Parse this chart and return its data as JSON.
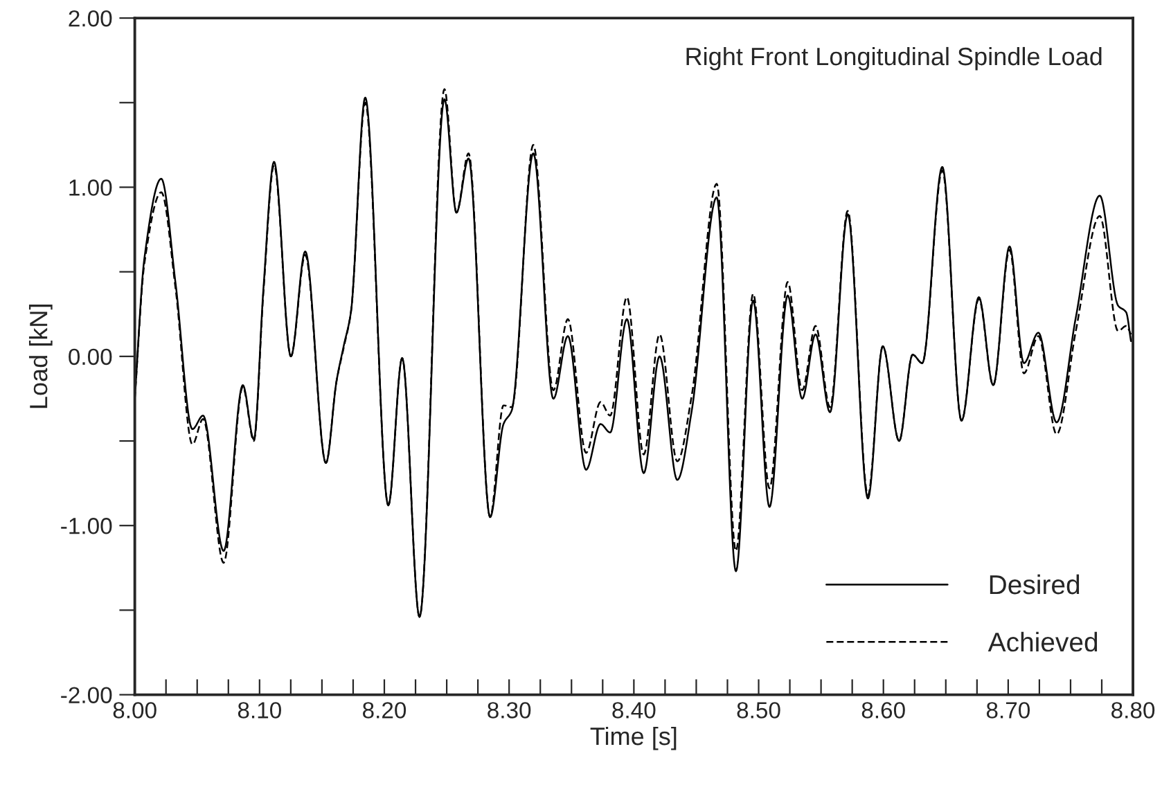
{
  "chart_data": {
    "type": "line",
    "xlabel": "Time [s]",
    "ylabel": "Load [kN]",
    "annotations": [
      "Right Front Longitudinal Spindle Load"
    ],
    "xlim": [
      8.0,
      8.8
    ],
    "ylim": [
      -2.0,
      2.0
    ],
    "xticks": [
      {
        "value": 8.0,
        "label": "8.00"
      },
      {
        "value": 8.025,
        "label": null
      },
      {
        "value": 8.05,
        "label": null
      },
      {
        "value": 8.075,
        "label": null
      },
      {
        "value": 8.1,
        "label": "8.10"
      },
      {
        "value": 8.125,
        "label": null
      },
      {
        "value": 8.15,
        "label": null
      },
      {
        "value": 8.175,
        "label": null
      },
      {
        "value": 8.2,
        "label": "8.20"
      },
      {
        "value": 8.225,
        "label": null
      },
      {
        "value": 8.25,
        "label": null
      },
      {
        "value": 8.275,
        "label": null
      },
      {
        "value": 8.3,
        "label": "8.30"
      },
      {
        "value": 8.325,
        "label": null
      },
      {
        "value": 8.35,
        "label": null
      },
      {
        "value": 8.375,
        "label": null
      },
      {
        "value": 8.4,
        "label": "8.40"
      },
      {
        "value": 8.425,
        "label": null
      },
      {
        "value": 8.45,
        "label": null
      },
      {
        "value": 8.475,
        "label": null
      },
      {
        "value": 8.5,
        "label": "8.50"
      },
      {
        "value": 8.525,
        "label": null
      },
      {
        "value": 8.55,
        "label": null
      },
      {
        "value": 8.575,
        "label": null
      },
      {
        "value": 8.6,
        "label": "8.60"
      },
      {
        "value": 8.625,
        "label": null
      },
      {
        "value": 8.65,
        "label": null
      },
      {
        "value": 8.675,
        "label": null
      },
      {
        "value": 8.7,
        "label": "8.70"
      },
      {
        "value": 8.725,
        "label": null
      },
      {
        "value": 8.75,
        "label": null
      },
      {
        "value": 8.775,
        "label": null
      },
      {
        "value": 8.8,
        "label": "8.80"
      }
    ],
    "yticks": [
      {
        "value": -2.0,
        "label": "-2.00"
      },
      {
        "value": -1.5,
        "label": null
      },
      {
        "value": -1.0,
        "label": "-1.00"
      },
      {
        "value": -0.5,
        "label": null
      },
      {
        "value": 0.0,
        "label": "0.00"
      },
      {
        "value": 0.5,
        "label": null
      },
      {
        "value": 1.0,
        "label": "1.00"
      },
      {
        "value": 1.5,
        "label": null
      },
      {
        "value": 2.0,
        "label": "2.00"
      }
    ],
    "x": [
      8.0,
      8.0077,
      8.0212,
      8.0327,
      8.0462,
      8.0547,
      8.0712,
      8.0866,
      8.0954,
      8.1031,
      8.1116,
      8.1251,
      8.1366,
      8.1532,
      8.1616,
      8.1674,
      8.1732,
      8.1847,
      8.2032,
      8.2143,
      8.2282,
      8.2482,
      8.2578,
      8.2675,
      8.2848,
      8.2955,
      8.3021,
      8.3194,
      8.3355,
      8.3471,
      8.3617,
      8.3733,
      8.381,
      8.3944,
      8.4079,
      8.4206,
      8.4348,
      8.4464,
      8.4664,
      8.4818,
      8.4956,
      8.5087,
      8.5233,
      8.5349,
      8.5456,
      8.5572,
      8.5714,
      8.5876,
      8.5995,
      8.6126,
      8.6234,
      8.6311,
      8.6472,
      8.6626,
      8.6765,
      8.688,
      8.7011,
      8.7126,
      8.7242,
      8.7388,
      8.7542,
      8.7734,
      8.7881,
      8.7946,
      8.7984
    ],
    "series": [
      {
        "name": "Desired",
        "color": "#000000",
        "line_style": "solid",
        "values": [
          -0.25,
          0.58,
          1.05,
          0.43,
          -0.43,
          -0.35,
          -1.15,
          -0.17,
          -0.49,
          0.4,
          1.15,
          0.0,
          0.62,
          -0.63,
          -0.15,
          0.06,
          0.26,
          1.53,
          -0.88,
          -0.01,
          -1.54,
          1.52,
          0.85,
          1.17,
          -0.95,
          -0.4,
          -0.32,
          1.2,
          -0.25,
          0.12,
          -0.67,
          -0.4,
          -0.45,
          0.22,
          -0.69,
          0.0,
          -0.73,
          -0.32,
          0.94,
          -1.27,
          0.33,
          -0.89,
          0.36,
          -0.25,
          0.13,
          -0.33,
          0.84,
          -0.84,
          0.06,
          -0.5,
          0.01,
          -0.04,
          1.12,
          -0.38,
          0.35,
          -0.17,
          0.65,
          -0.04,
          0.14,
          -0.39,
          0.23,
          0.95,
          0.3,
          0.26,
          0.09
        ]
      },
      {
        "name": "Achieved",
        "color": "#000000",
        "line_style": "dashed",
        "values": [
          -0.25,
          0.55,
          0.97,
          0.4,
          -0.52,
          -0.37,
          -1.22,
          -0.18,
          -0.5,
          0.38,
          1.13,
          0.0,
          0.6,
          -0.63,
          -0.15,
          0.05,
          0.26,
          1.5,
          -0.88,
          -0.01,
          -1.54,
          1.58,
          0.85,
          1.2,
          -0.95,
          -0.29,
          -0.3,
          1.25,
          -0.2,
          0.22,
          -0.57,
          -0.27,
          -0.35,
          0.35,
          -0.58,
          0.13,
          -0.62,
          -0.23,
          1.02,
          -1.15,
          0.37,
          -0.78,
          0.44,
          -0.2,
          0.18,
          -0.3,
          0.86,
          -0.82,
          0.06,
          -0.5,
          0.01,
          -0.04,
          1.1,
          -0.38,
          0.34,
          -0.17,
          0.63,
          -0.1,
          0.12,
          -0.46,
          0.15,
          0.83,
          0.15,
          0.18,
          0.13
        ]
      }
    ],
    "legend": "bottom right",
    "grid": false
  }
}
